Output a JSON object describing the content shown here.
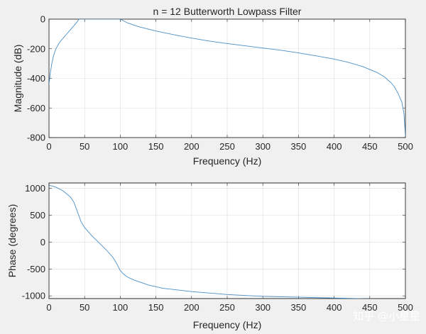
{
  "colors": {
    "series": "#4a8fc7",
    "axes": "#262626",
    "grid": "#dcdcdc",
    "background": "#f0f0f0"
  },
  "watermark": "知乎 @小星星",
  "chart_data": [
    {
      "id": "magnitude",
      "type": "line",
      "title": "n = 12 Butterworth Lowpass Filter",
      "xlabel": "Frequency (Hz)",
      "ylabel": "Magnitude (dB)",
      "xlim": [
        0,
        500
      ],
      "ylim": [
        -800,
        0
      ],
      "xticks": [
        0,
        50,
        100,
        150,
        200,
        250,
        300,
        350,
        400,
        450,
        500
      ],
      "yticks": [
        0,
        -200,
        -400,
        -600,
        -800
      ],
      "grid": true,
      "series": [
        {
          "name": "magnitude",
          "x": [
            0,
            1,
            2,
            4,
            6,
            8,
            10,
            15,
            20,
            25,
            30,
            35,
            40,
            42,
            50,
            60,
            70,
            80,
            90,
            100,
            110,
            125,
            150,
            175,
            200,
            225,
            250,
            275,
            300,
            325,
            350,
            375,
            400,
            420,
            440,
            460,
            470,
            480,
            485,
            490,
            495,
            498,
            500
          ],
          "y": [
            -440,
            -400,
            -360,
            -300,
            -255,
            -222,
            -198,
            -155,
            -128,
            -100,
            -72,
            -44,
            -15,
            0,
            0,
            0,
            0,
            0,
            0,
            0,
            -25,
            -50,
            -80,
            -105,
            -128,
            -148,
            -165,
            -180,
            -195,
            -210,
            -228,
            -248,
            -270,
            -292,
            -320,
            -360,
            -388,
            -430,
            -460,
            -505,
            -560,
            -640,
            -790
          ]
        }
      ]
    },
    {
      "id": "phase",
      "type": "line",
      "title": "",
      "xlabel": "Frequency (Hz)",
      "ylabel": "Phase (degrees)",
      "xlim": [
        0,
        500
      ],
      "ylim": [
        -1050,
        1100
      ],
      "xticks": [
        0,
        50,
        100,
        150,
        200,
        250,
        300,
        350,
        400,
        450,
        500
      ],
      "yticks": [
        1000,
        500,
        0,
        -500,
        -1000
      ],
      "grid": true,
      "series": [
        {
          "name": "phase",
          "x": [
            0,
            10,
            20,
            30,
            35,
            40,
            45,
            50,
            60,
            70,
            80,
            90,
            95,
            100,
            105,
            110,
            120,
            140,
            160,
            200,
            250,
            300,
            350,
            400,
            450,
            500
          ],
          "y": [
            1060,
            1020,
            950,
            840,
            740,
            560,
            380,
            270,
            120,
            -10,
            -140,
            -290,
            -400,
            -530,
            -600,
            -650,
            -710,
            -800,
            -860,
            -920,
            -975,
            -1010,
            -1025,
            -1040,
            -1055,
            -1060
          ]
        }
      ]
    }
  ]
}
